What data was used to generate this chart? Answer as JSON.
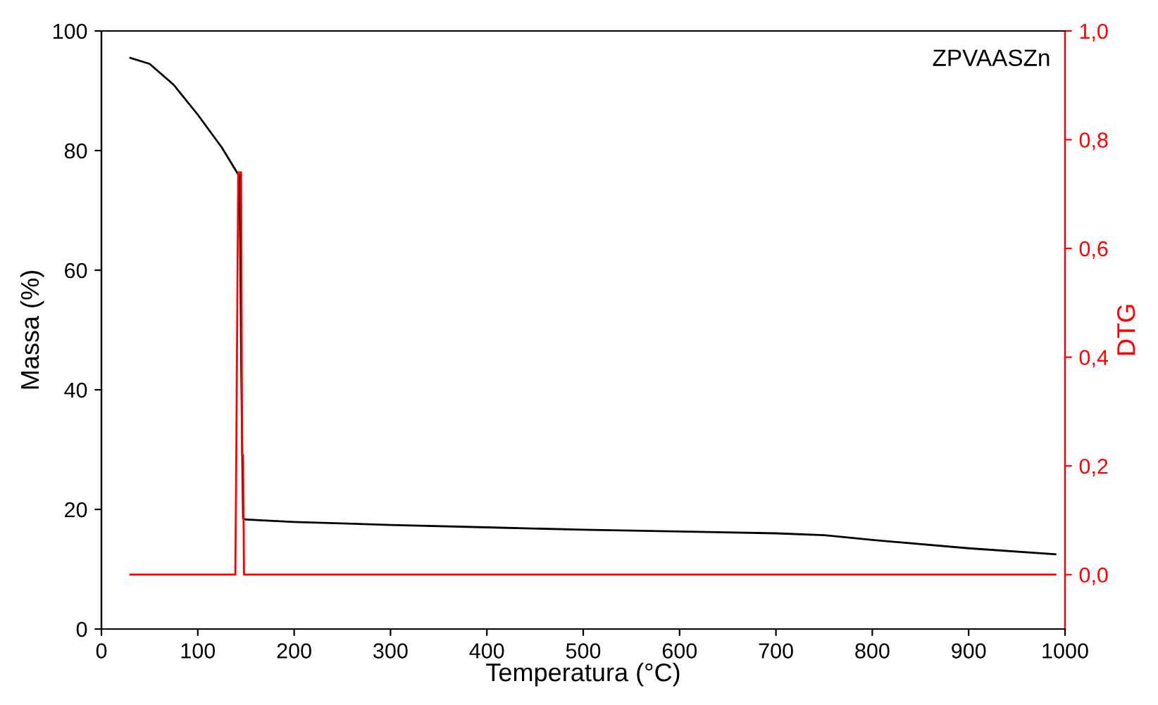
{
  "chart_data": {
    "type": "line",
    "xlabel": "Temperatura (°C)",
    "ylabel": "Massa (%)",
    "y2label": "DTG",
    "annotations": [
      "ZPVAASZn"
    ],
    "xlim": [
      0,
      1000
    ],
    "xticks": [
      0,
      100,
      200,
      300,
      400,
      500,
      600,
      700,
      800,
      900,
      1000
    ],
    "ylim": [
      0,
      100
    ],
    "yticks": [
      0,
      20,
      40,
      60,
      80,
      100
    ],
    "y2lim": [
      -0.1,
      1.0
    ],
    "y2ticks": [
      {
        "value": 0,
        "label": "0,0"
      },
      {
        "value": 0.2,
        "label": "0,2"
      },
      {
        "value": 0.4,
        "label": "0,4"
      },
      {
        "value": 0.6,
        "label": "0,6"
      },
      {
        "value": 0.8,
        "label": "0,8"
      },
      {
        "value": 1.0,
        "label": "1,0"
      }
    ],
    "grid": false,
    "legend": false,
    "series": [
      {
        "color": "#000000",
        "x": [
          30,
          50,
          75,
          100,
          125,
          142,
          143,
          144,
          145,
          147,
          150,
          200,
          300,
          400,
          500,
          600,
          700,
          750,
          800,
          900,
          990
        ],
        "values": [
          95.5,
          94.5,
          91,
          86,
          80.5,
          76,
          76,
          65,
          45,
          18.5,
          18.3,
          17.9,
          17.4,
          17,
          16.6,
          16.3,
          16,
          15.7,
          14.9,
          13.5,
          12.5
        ]
      },
      {
        "color": "#ff0000",
        "axis": "y2",
        "x": [
          30,
          139,
          140,
          141,
          142,
          145,
          146,
          147,
          148,
          990
        ],
        "values": [
          0,
          0,
          0.23,
          0.49,
          0.74,
          0.74,
          0.22,
          0.22,
          0,
          0
        ]
      }
    ]
  }
}
